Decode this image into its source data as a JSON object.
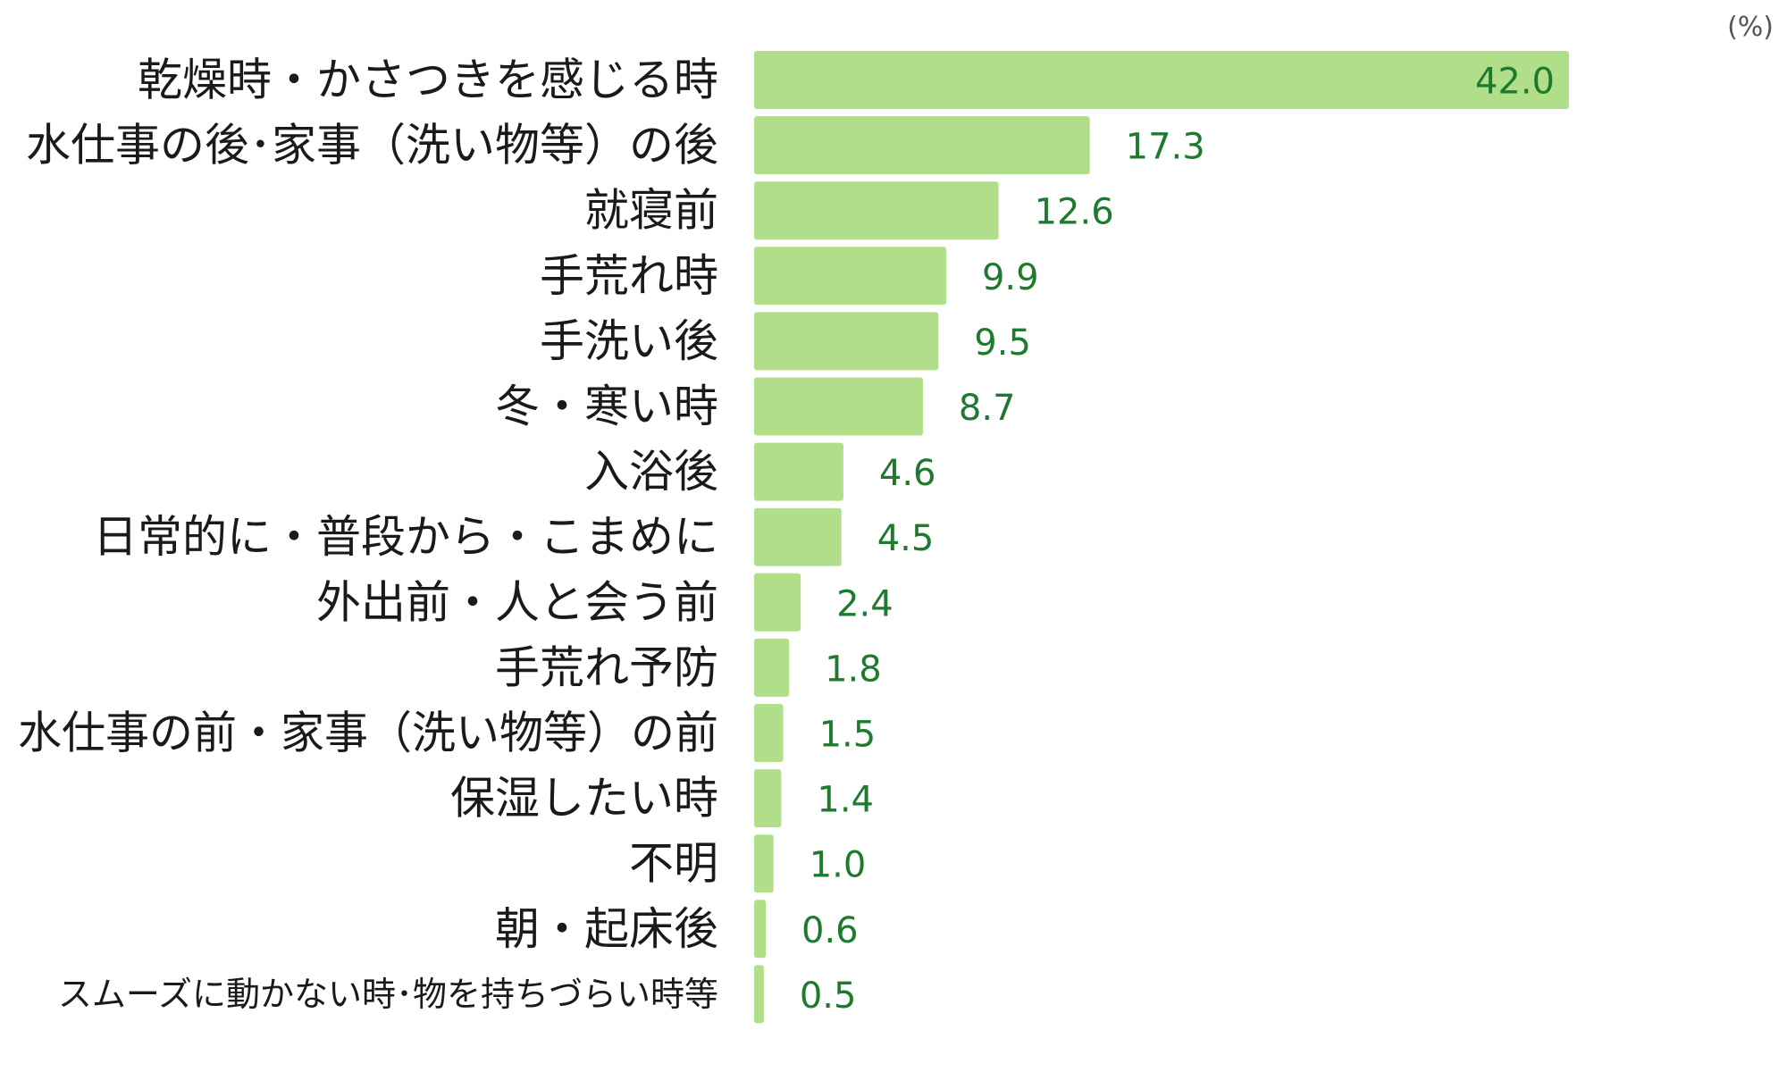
{
  "chart_data": {
    "type": "bar",
    "orientation": "horizontal",
    "unit_label": "(%)",
    "categories": [
      "乾燥時・かさつきを感じる時",
      "水仕事の後･家事（洗い物等）の後",
      "就寝前",
      "手荒れ時",
      "手洗い後",
      "冬・寒い時",
      "入浴後",
      "日常的に・普段から・こまめに",
      "外出前・人と会う前",
      "手荒れ予防",
      "水仕事の前・家事（洗い物等）の前",
      "保湿したい時",
      "不明",
      "朝・起床後",
      "スムーズに動かない時･物を持ちづらい時等"
    ],
    "values": [
      42.0,
      17.3,
      12.6,
      9.9,
      9.5,
      8.7,
      4.6,
      4.5,
      2.4,
      1.8,
      1.5,
      1.4,
      1.0,
      0.6,
      0.5
    ],
    "value_labels": [
      "42.0",
      "17.3",
      "12.6",
      "9.9",
      "9.5",
      "8.7",
      "4.6",
      "4.5",
      "2.4",
      "1.8",
      "1.5",
      "1.4",
      "1.0",
      "0.6",
      "0.5"
    ],
    "xlim": [
      0,
      42.0
    ],
    "grid": false,
    "bar_color": "#b1de89",
    "value_label_color": "#1e7a2e",
    "label_color": "#1a1a1a"
  }
}
